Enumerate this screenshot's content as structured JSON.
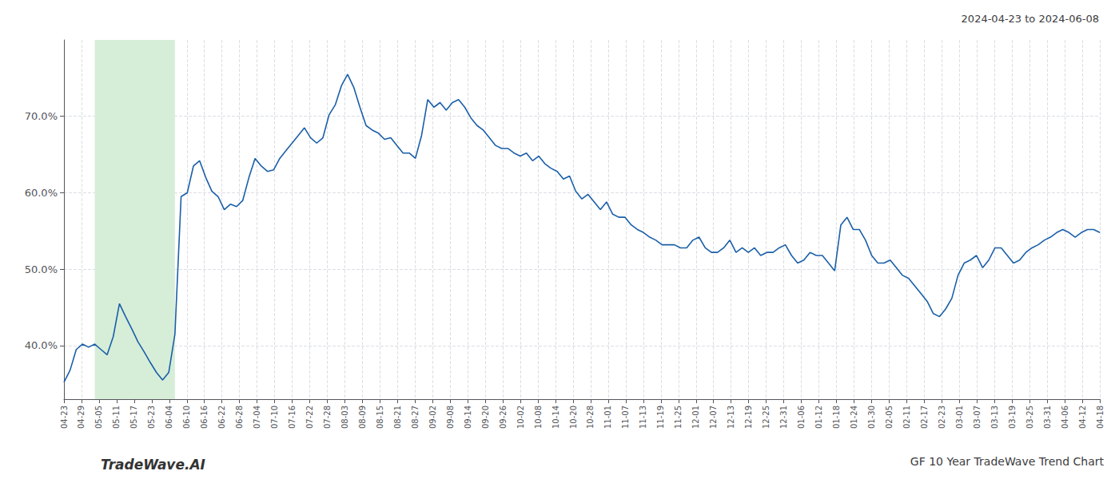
{
  "chart_data": {
    "type": "line",
    "title": "GF 10 Year TradeWave Trend Chart",
    "subtitle": "2024-04-23 to 2024-06-08",
    "annotations": [
      "TradeWave.AI"
    ],
    "color": "#1a5fa8",
    "grid": true,
    "xlim": [
      0,
      168
    ],
    "ylim": [
      33,
      80
    ],
    "yticks": [
      {
        "value": 40,
        "label": "40.0%"
      },
      {
        "value": 50,
        "label": "50.0%"
      },
      {
        "value": 60,
        "label": "60.0%"
      },
      {
        "value": 70,
        "label": "70.0%"
      }
    ],
    "xticks": [
      {
        "value": 0,
        "label": "04-23"
      },
      {
        "value": 2.847458,
        "label": "04-29"
      },
      {
        "value": 5.694915,
        "label": "05-05"
      },
      {
        "value": 8.542373,
        "label": "05-11"
      },
      {
        "value": 11.389831,
        "label": "05-17"
      },
      {
        "value": 14.237288,
        "label": "05-23"
      },
      {
        "value": 17.084746,
        "label": "06-04"
      },
      {
        "value": 19.932203,
        "label": "06-10"
      },
      {
        "value": 22.779661,
        "label": "06-16"
      },
      {
        "value": 25.627119,
        "label": "06-22"
      },
      {
        "value": 28.474576,
        "label": "06-28"
      },
      {
        "value": 31.322034,
        "label": "07-04"
      },
      {
        "value": 34.169492,
        "label": "07-10"
      },
      {
        "value": 37.016949,
        "label": "07-16"
      },
      {
        "value": 39.864407,
        "label": "07-22"
      },
      {
        "value": 42.711864,
        "label": "07-28"
      },
      {
        "value": 45.559322,
        "label": "08-03"
      },
      {
        "value": 48.40678,
        "label": "08-09"
      },
      {
        "value": 51.254237,
        "label": "08-15"
      },
      {
        "value": 54.101695,
        "label": "08-21"
      },
      {
        "value": 56.949153,
        "label": "08-27"
      },
      {
        "value": 59.79661,
        "label": "09-02"
      },
      {
        "value": 62.644068,
        "label": "09-08"
      },
      {
        "value": 65.491525,
        "label": "09-14"
      },
      {
        "value": 68.338983,
        "label": "09-20"
      },
      {
        "value": 71.186441,
        "label": "09-26"
      },
      {
        "value": 74.033898,
        "label": "10-02"
      },
      {
        "value": 76.881356,
        "label": "10-08"
      },
      {
        "value": 79.728814,
        "label": "10-14"
      },
      {
        "value": 82.576271,
        "label": "10-20"
      },
      {
        "value": 85.423729,
        "label": "10-28"
      },
      {
        "value": 88.271186,
        "label": "11-01"
      },
      {
        "value": 91.118644,
        "label": "11-07"
      },
      {
        "value": 93.966102,
        "label": "11-13"
      },
      {
        "value": 96.813559,
        "label": "11-19"
      },
      {
        "value": 99.661017,
        "label": "11-25"
      },
      {
        "value": 102.508475,
        "label": "12-01"
      },
      {
        "value": 105.355932,
        "label": "12-07"
      },
      {
        "value": 108.20339,
        "label": "12-13"
      },
      {
        "value": 111.050847,
        "label": "12-19"
      },
      {
        "value": 113.898305,
        "label": "12-25"
      },
      {
        "value": 116.745763,
        "label": "12-31"
      },
      {
        "value": 119.59322,
        "label": "01-06"
      },
      {
        "value": 122.440678,
        "label": "01-12"
      },
      {
        "value": 125.288136,
        "label": "01-18"
      },
      {
        "value": 128.135593,
        "label": "01-24"
      },
      {
        "value": 130.983051,
        "label": "01-30"
      },
      {
        "value": 133.830508,
        "label": "02-05"
      },
      {
        "value": 136.677966,
        "label": "02-11"
      },
      {
        "value": 139.525424,
        "label": "02-17"
      },
      {
        "value": 142.372881,
        "label": "02-23"
      },
      {
        "value": 145.220339,
        "label": "03-01"
      },
      {
        "value": 148.067797,
        "label": "03-07"
      },
      {
        "value": 150.915254,
        "label": "03-13"
      },
      {
        "value": 153.762712,
        "label": "03-19"
      },
      {
        "value": 156.610169,
        "label": "03-25"
      },
      {
        "value": 159.457627,
        "label": "03-31"
      },
      {
        "value": 162.305085,
        "label": "04-06"
      },
      {
        "value": 165.152542,
        "label": "04-12"
      },
      {
        "value": 168,
        "label": "04-18"
      }
    ],
    "x": [
      0,
      1,
      2,
      3,
      4,
      5,
      6,
      7,
      8,
      9,
      10,
      11,
      12,
      13,
      14,
      15,
      16,
      17,
      18,
      19,
      20,
      21,
      22,
      23,
      24,
      25,
      26,
      27,
      28,
      29,
      30,
      31,
      32,
      33,
      34,
      35,
      36,
      37,
      38,
      39,
      40,
      41,
      42,
      43,
      44,
      45,
      46,
      47,
      48,
      49,
      50,
      51,
      52,
      53,
      54,
      55,
      56,
      57,
      58,
      59,
      60,
      61,
      62,
      63,
      64,
      65,
      66,
      67,
      68,
      69,
      70,
      71,
      72,
      73,
      74,
      75,
      76,
      77,
      78,
      79,
      80,
      81,
      82,
      83,
      84,
      85,
      86,
      87,
      88,
      89,
      90,
      91,
      92,
      93,
      94,
      95,
      96,
      97,
      98,
      99,
      100,
      101,
      102,
      103,
      104,
      105,
      106,
      107,
      108,
      109,
      110,
      111,
      112,
      113,
      114,
      115,
      116,
      117,
      118,
      119,
      120,
      121,
      122,
      123,
      124,
      125,
      126,
      127,
      128,
      129,
      130,
      131,
      132,
      133,
      134,
      135,
      136,
      137,
      138,
      139,
      140,
      141,
      142,
      143,
      144,
      145,
      146,
      147,
      148,
      149,
      150,
      151,
      152,
      153,
      154,
      155,
      156,
      157,
      158,
      159,
      160,
      161,
      162,
      163,
      164,
      165,
      166,
      167,
      168
    ],
    "values": [
      35.2,
      36.8,
      39.5,
      40.2,
      39.8,
      40.2,
      39.5,
      38.8,
      41.2,
      45.5,
      43.8,
      42.2,
      40.5,
      39.2,
      37.8,
      36.5,
      35.5,
      36.5,
      41.5,
      59.5,
      60.0,
      63.5,
      64.2,
      62.0,
      60.2,
      59.5,
      57.8,
      58.5,
      58.2,
      59.0,
      62.0,
      64.5,
      63.5,
      62.8,
      63.0,
      64.5,
      65.5,
      66.5,
      67.5,
      68.5,
      67.2,
      66.5,
      67.2,
      70.2,
      71.5,
      74.0,
      75.5,
      73.8,
      71.2,
      68.8,
      68.2,
      67.8,
      67.0,
      67.2,
      66.2,
      65.2,
      65.2,
      64.5,
      67.5,
      72.2,
      71.2,
      71.8,
      70.8,
      71.8,
      72.2,
      71.2,
      69.8,
      68.8,
      68.2,
      67.2,
      66.2,
      65.8,
      65.8,
      65.2,
      64.8,
      65.2,
      64.2,
      64.8,
      63.8,
      63.2,
      62.8,
      61.8,
      62.2,
      60.2,
      59.2,
      59.8,
      58.8,
      57.8,
      58.8,
      57.2,
      56.8,
      56.8,
      55.8,
      55.2,
      54.8,
      54.2,
      53.8,
      53.2,
      53.2,
      53.2,
      52.8,
      52.8,
      53.8,
      54.2,
      52.8,
      52.2,
      52.2,
      52.8,
      53.8,
      52.2,
      52.8,
      52.2,
      52.8,
      51.8,
      52.2,
      52.2,
      52.8,
      53.2,
      51.8,
      50.8,
      51.2,
      52.2,
      51.8,
      51.8,
      50.8,
      49.8,
      55.8,
      56.8,
      55.2,
      55.2,
      53.8,
      51.8,
      50.8,
      50.8,
      51.2,
      50.2,
      49.2,
      48.8,
      47.8,
      46.8,
      45.8,
      44.2,
      43.8,
      44.8,
      46.2,
      49.2,
      50.8,
      51.2,
      51.8,
      50.2,
      51.2,
      52.8,
      52.8,
      51.8,
      50.8,
      51.2,
      52.2,
      52.8,
      53.2,
      53.8,
      54.2,
      54.8,
      55.2,
      54.8,
      54.2,
      54.8,
      55.2,
      55.2,
      54.8
    ],
    "shaded_span": {
      "x": [
        5,
        18
      ],
      "color": "#d6edd8"
    }
  }
}
